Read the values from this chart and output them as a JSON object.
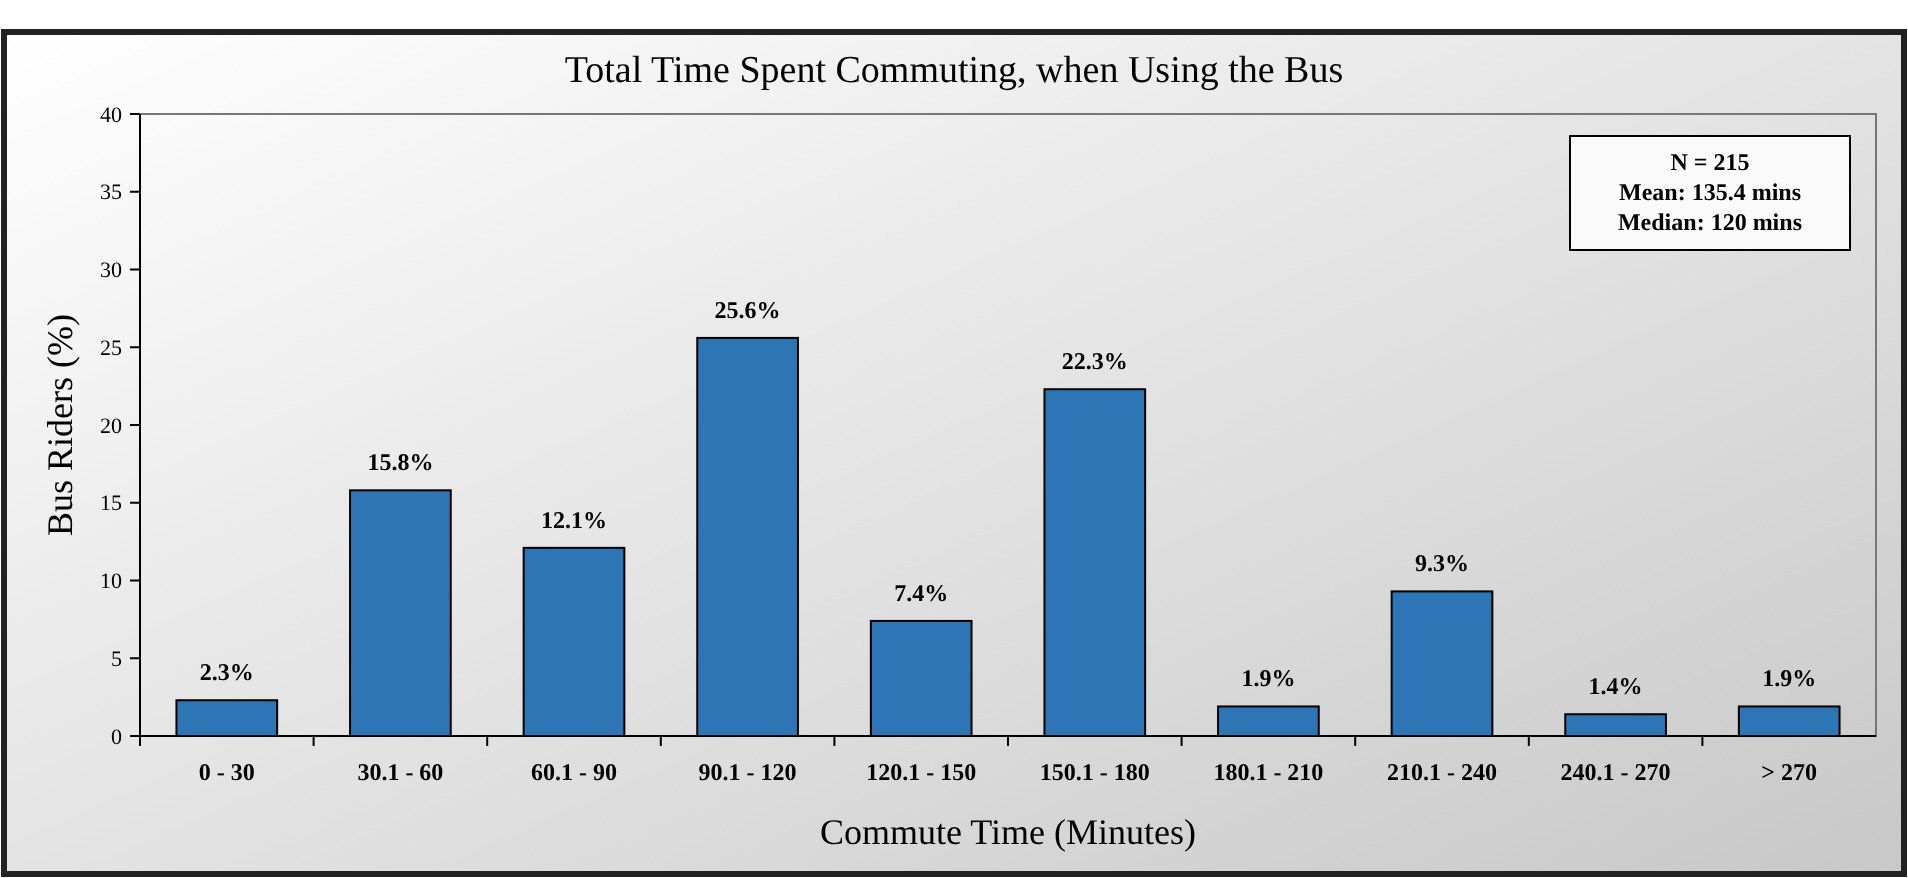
{
  "chart_data": {
    "type": "bar",
    "title": "Total Time Spent Commuting, when Using the Bus",
    "xlabel": "Commute Time (Minutes)",
    "ylabel": "Bus Riders (%)",
    "categories": [
      "0 - 30",
      "30.1 - 60",
      "60.1 - 90",
      "90.1 - 120",
      "120.1 - 150",
      "150.1 - 180",
      "180.1 - 210",
      "210.1 - 240",
      "240.1 - 270",
      "> 270"
    ],
    "values": [
      2.3,
      15.8,
      12.1,
      25.6,
      7.4,
      22.3,
      1.9,
      9.3,
      1.4,
      1.9
    ],
    "value_labels": [
      "2.3%",
      "15.8%",
      "12.1%",
      "25.6%",
      "7.4%",
      "22.3%",
      "1.9%",
      "9.3%",
      "1.4%",
      "1.9%"
    ],
    "color": "#2e75b6",
    "ylim": [
      0,
      40
    ],
    "yticks": [
      0,
      5,
      10,
      15,
      20,
      25,
      30,
      35,
      40
    ],
    "grid": false,
    "annotations": [
      "N = 215",
      "Mean: 135.4 mins",
      "Median: 120 mins"
    ]
  }
}
